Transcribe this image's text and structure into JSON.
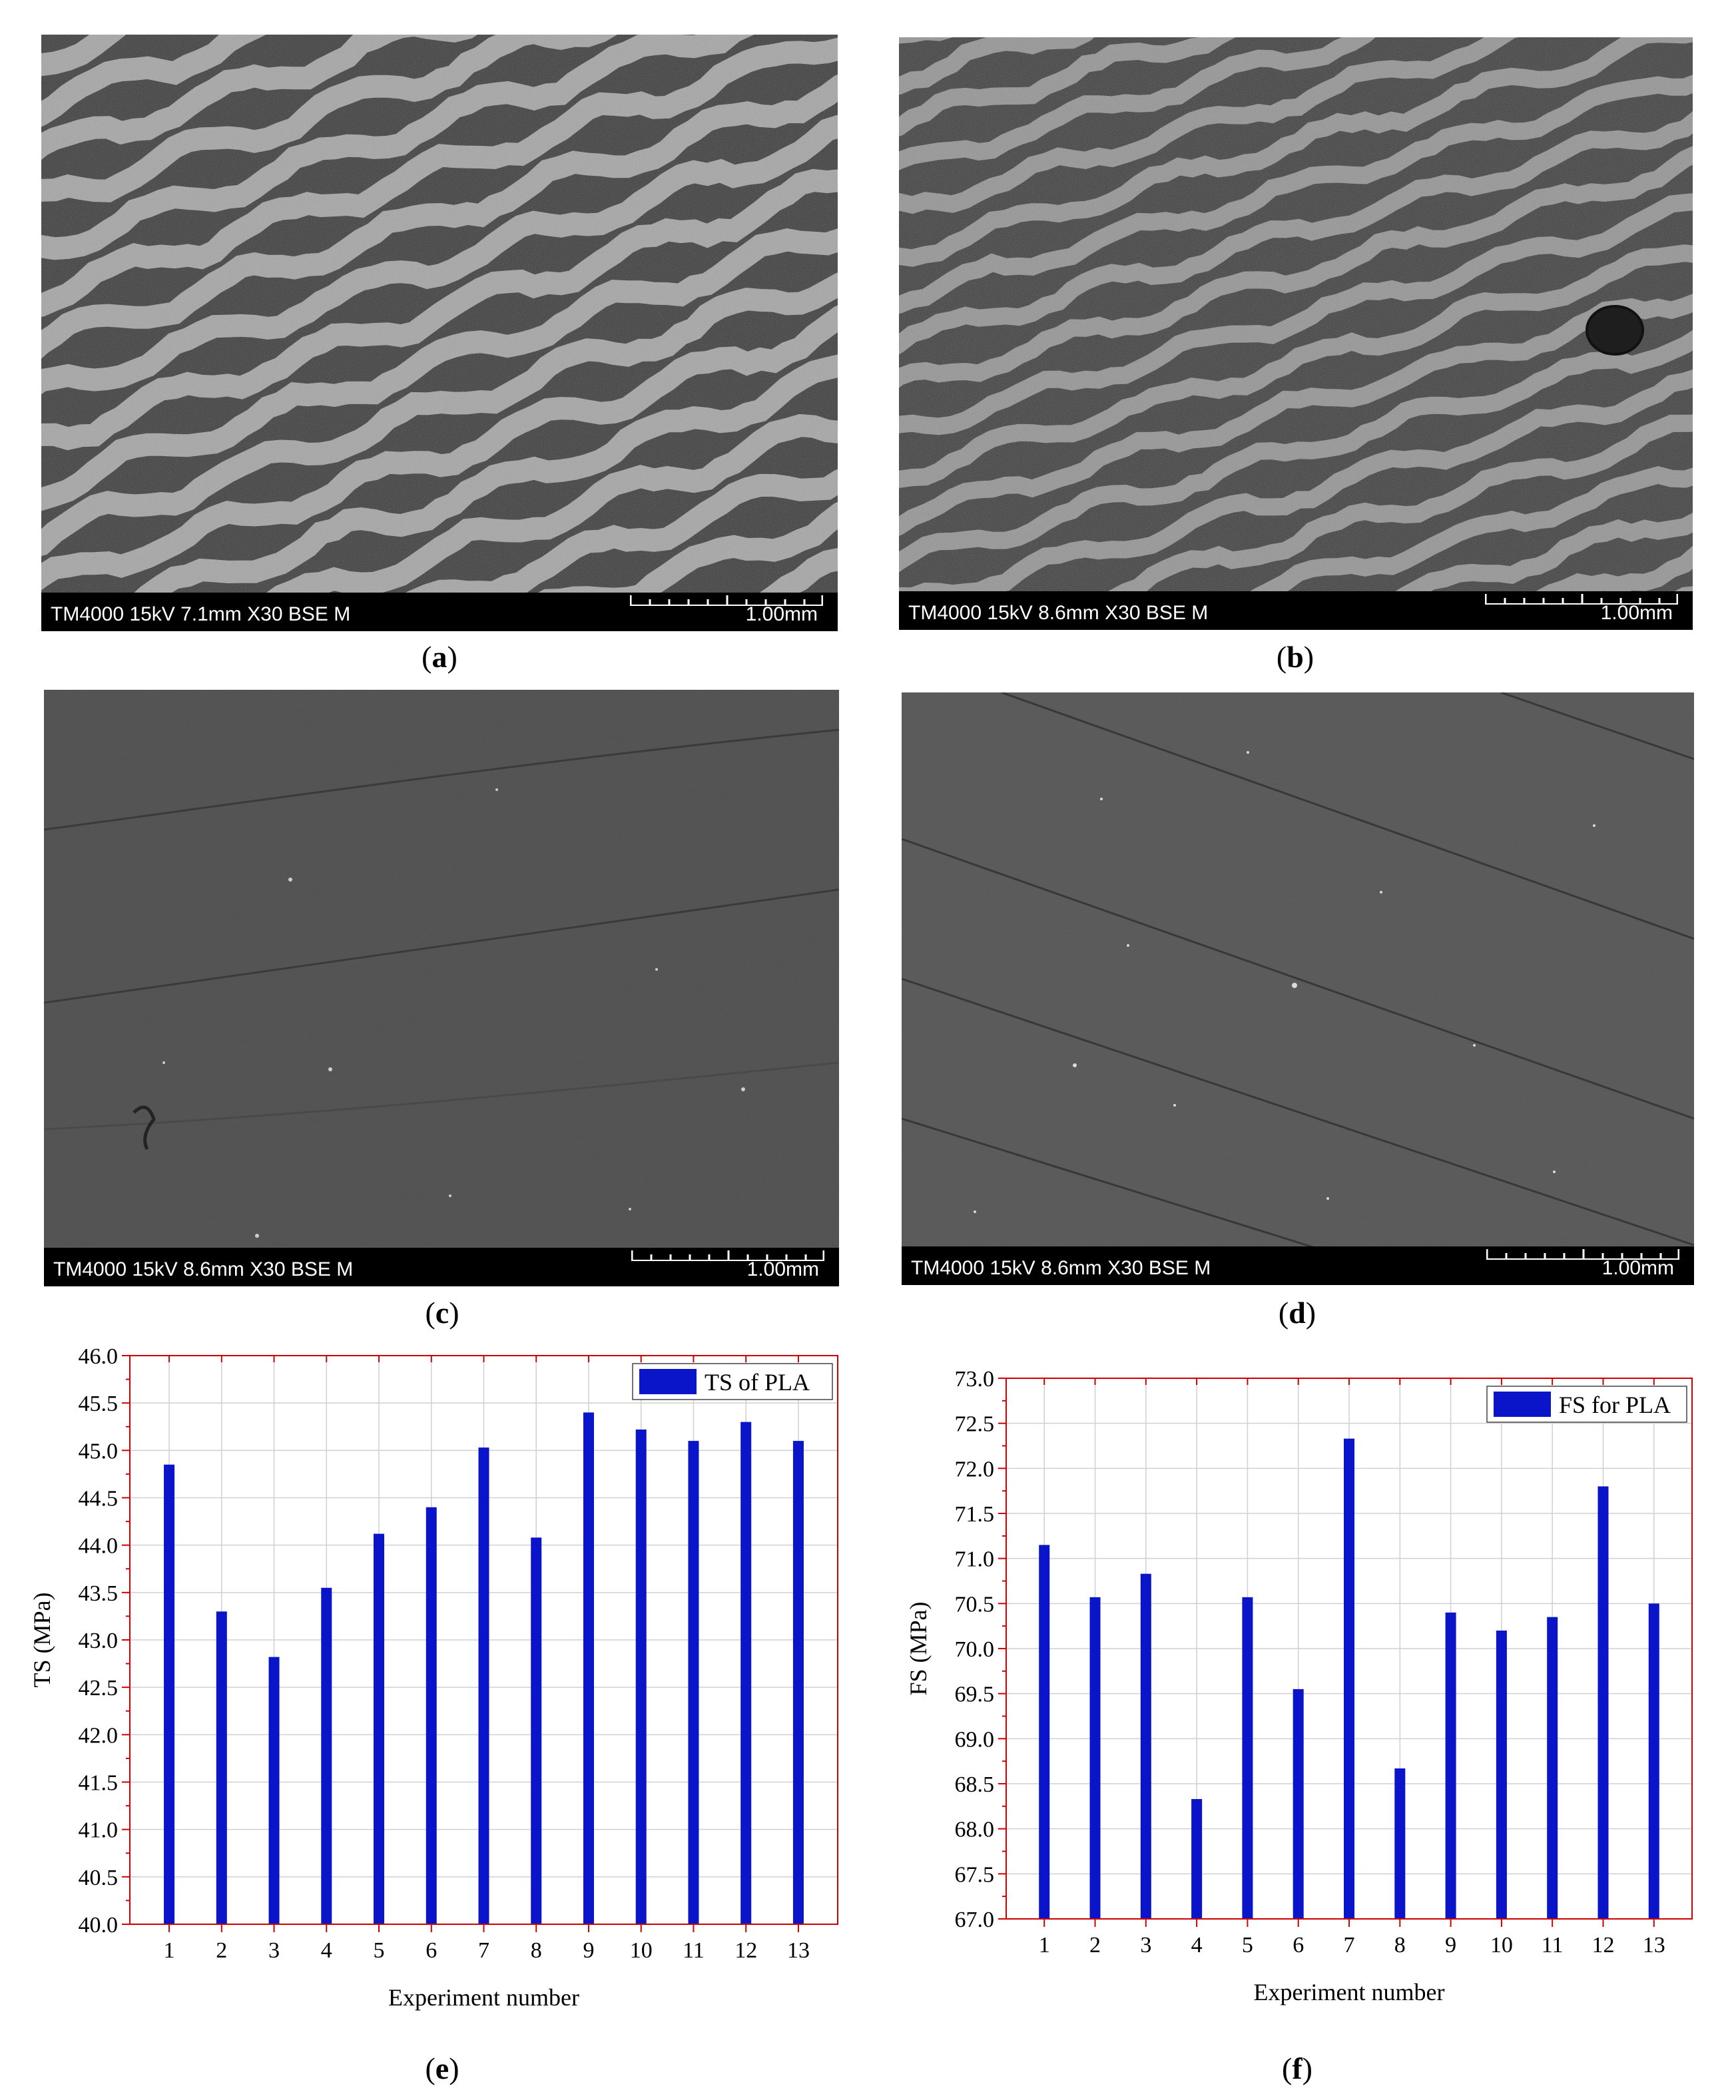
{
  "sem_panels": [
    {
      "id": "a",
      "footer_text": "TM4000 15kV 7.1mm X30 BSE M",
      "scale_label": "1.00mm",
      "caption_letter": "a"
    },
    {
      "id": "b",
      "footer_text": "TM4000 15kV 8.6mm X30 BSE M",
      "scale_label": "1.00mm",
      "caption_letter": "b"
    },
    {
      "id": "c",
      "footer_text": "TM4000 15kV 8.6mm X30 BSE M",
      "scale_label": "1.00mm",
      "caption_letter": "c"
    },
    {
      "id": "d",
      "footer_text": "TM4000 15kV 8.6mm X30 BSE M",
      "scale_label": "1.00mm",
      "caption_letter": "d"
    }
  ],
  "captions": {
    "e": "e",
    "f": "f"
  },
  "colors": {
    "bar": "#0a14c8",
    "axis": "#cc0000",
    "grid": "#d0d0d0"
  },
  "chart_data": [
    {
      "type": "bar",
      "categories": [
        "1",
        "2",
        "3",
        "4",
        "5",
        "6",
        "7",
        "8",
        "9",
        "10",
        "11",
        "12",
        "13"
      ],
      "series": [
        {
          "name": "TS of PLA",
          "values": [
            44.85,
            43.3,
            42.82,
            43.55,
            44.12,
            44.4,
            45.03,
            44.08,
            45.4,
            45.22,
            45.1,
            45.3,
            45.1
          ]
        }
      ],
      "xlabel": "Experiment number",
      "ylabel": "TS (MPa)",
      "ylim": [
        40.0,
        46.0
      ],
      "yticks": [
        "40.0",
        "40.5",
        "41.0",
        "41.5",
        "42.0",
        "42.5",
        "43.0",
        "43.5",
        "44.0",
        "44.5",
        "45.0",
        "45.5",
        "46.0"
      ],
      "grid": true,
      "legend_position": "top-right"
    },
    {
      "type": "bar",
      "categories": [
        "1",
        "2",
        "3",
        "4",
        "5",
        "6",
        "7",
        "8",
        "9",
        "10",
        "11",
        "12",
        "13"
      ],
      "series": [
        {
          "name": "FS for PLA",
          "values": [
            71.15,
            70.57,
            70.83,
            68.33,
            70.57,
            69.55,
            72.33,
            68.67,
            70.4,
            70.2,
            70.35,
            71.8,
            70.5
          ]
        }
      ],
      "xlabel": "Experiment number",
      "ylabel": "FS (MPa)",
      "ylim": [
        67.0,
        73.0
      ],
      "yticks": [
        "67.0",
        "67.5",
        "68.0",
        "68.5",
        "69.0",
        "69.5",
        "70.0",
        "70.5",
        "71.0",
        "71.5",
        "72.0",
        "72.5",
        "73.0"
      ],
      "grid": true,
      "legend_position": "top-right"
    }
  ]
}
